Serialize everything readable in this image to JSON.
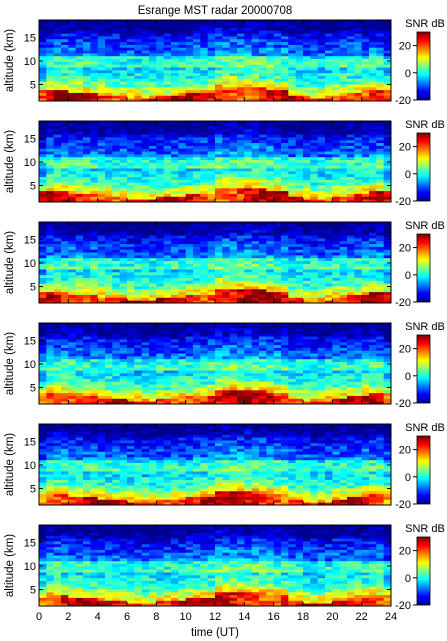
{
  "chart_data": {
    "type": "heatmap",
    "title": "Esrange MST radar 20000708",
    "xlabel": "time (UT)",
    "ylabel": "altitude (km)",
    "colorbar_label": "SNR dB",
    "x_range": [
      0,
      24
    ],
    "y_range": [
      1.5,
      18.7
    ],
    "color_range": [
      -20,
      30
    ],
    "x_ticks": [
      0,
      2,
      4,
      6,
      8,
      10,
      12,
      14,
      16,
      18,
      20,
      22,
      24
    ],
    "y_ticks": [
      5,
      10,
      15
    ],
    "colorbar_ticks": [
      -20,
      0,
      20
    ],
    "colormap": [
      "#00008f",
      "#0000ff",
      "#0080ff",
      "#00ffff",
      "#80ff80",
      "#ffff00",
      "#ff8000",
      "#ff0000",
      "#800000"
    ],
    "panel_count": 6,
    "x_step_h": 0.5,
    "y_step_km": 0.6
  }
}
